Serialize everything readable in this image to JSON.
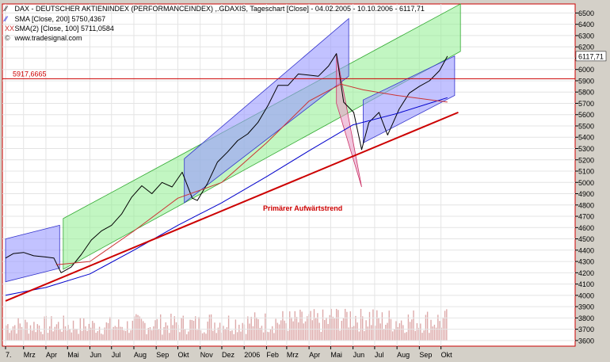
{
  "legend": {
    "dax": "DAX  - DEUTSCHER AKTIENINDEX (PERFORMANCEINDEX) ,.GDAXIS, Tageschart [Close] - 04.02.2005 - 10.10.2006 - 6117,71",
    "sma200": "SMA [Close, 200] 5750,4367",
    "sma100": "SMA(2) [Close, 100] 5711,0584",
    "source": "www.tradesignal.com",
    "dax_mark": "⁄⁄",
    "sma200_mark": "⁄⁄",
    "sma100_mark": "XX"
  },
  "colors": {
    "background": "#ffffff",
    "frame": "#d4d0c8",
    "price": "#000000",
    "sma200": "#0000cc",
    "sma100": "#cc3333",
    "green_channel": "#90ee90",
    "blue_channel": "#9999ff",
    "trendline": "#cc0000",
    "level_line": "#cc0000",
    "volume": "#ddaaaa",
    "last_value_box": "#ffffff"
  },
  "chart_data": {
    "type": "line",
    "title": "DAX  - DEUTSCHER AKTIENINDEX (PERFORMANCEINDEX) ,.GDAXIS, Tageschart [Close] - 04.02.2005 - 10.10.2006 - 6117,71",
    "xlabel": "",
    "ylabel": "",
    "x_range": [
      "2005-02-04",
      "2006-10-10"
    ],
    "ylim": [
      3550,
      6580
    ],
    "y_ticks": [
      3600,
      3700,
      3800,
      3900,
      4000,
      4100,
      4200,
      4300,
      4400,
      4500,
      4600,
      4700,
      4800,
      4900,
      5000,
      5100,
      5200,
      5300,
      5400,
      5500,
      5600,
      5700,
      5800,
      5900,
      6000,
      6100,
      6200,
      6300,
      6400,
      6500
    ],
    "x_ticks": [
      {
        "date": "2005-02-04",
        "label": "7."
      },
      {
        "date": "2005-03-01",
        "label": "Mrz"
      },
      {
        "date": "2005-04-01",
        "label": "Apr"
      },
      {
        "date": "2005-05-01",
        "label": "Mai"
      },
      {
        "date": "2005-06-01",
        "label": "Jun"
      },
      {
        "date": "2005-07-01",
        "label": "Jul"
      },
      {
        "date": "2005-08-01",
        "label": "Aug"
      },
      {
        "date": "2005-09-01",
        "label": "Sep"
      },
      {
        "date": "2005-10-01",
        "label": "Okt"
      },
      {
        "date": "2005-11-01",
        "label": "Nov"
      },
      {
        "date": "2005-12-01",
        "label": "Dez"
      },
      {
        "date": "2006-01-01",
        "label": "2006"
      },
      {
        "date": "2006-02-01",
        "label": "Feb"
      },
      {
        "date": "2006-03-01",
        "label": "Mrz"
      },
      {
        "date": "2006-04-01",
        "label": "Apr"
      },
      {
        "date": "2006-05-01",
        "label": "Mai"
      },
      {
        "date": "2006-06-01",
        "label": "Jun"
      },
      {
        "date": "2006-07-01",
        "label": "Jul"
      },
      {
        "date": "2006-08-01",
        "label": "Aug"
      },
      {
        "date": "2006-09-01",
        "label": "Sep"
      },
      {
        "date": "2006-10-01",
        "label": "Okt"
      }
    ],
    "grid": true,
    "legend_position": "top-left",
    "series": [
      {
        "name": "DAX",
        "points": [
          [
            "2005-02-04",
            4330
          ],
          [
            "2005-02-15",
            4370
          ],
          [
            "2005-03-01",
            4380
          ],
          [
            "2005-03-15",
            4350
          ],
          [
            "2005-03-31",
            4340
          ],
          [
            "2005-04-12",
            4330
          ],
          [
            "2005-04-22",
            4200
          ],
          [
            "2005-05-06",
            4250
          ],
          [
            "2005-05-20",
            4360
          ],
          [
            "2005-06-03",
            4490
          ],
          [
            "2005-06-17",
            4570
          ],
          [
            "2005-07-01",
            4620
          ],
          [
            "2005-07-15",
            4720
          ],
          [
            "2005-07-29",
            4870
          ],
          [
            "2005-08-12",
            4970
          ],
          [
            "2005-08-26",
            4900
          ],
          [
            "2005-09-09",
            5000
          ],
          [
            "2005-09-23",
            4960
          ],
          [
            "2005-10-07",
            5090
          ],
          [
            "2005-10-21",
            4860
          ],
          [
            "2005-10-28",
            4840
          ],
          [
            "2005-11-11",
            4990
          ],
          [
            "2005-11-25",
            5180
          ],
          [
            "2005-12-09",
            5270
          ],
          [
            "2005-12-23",
            5370
          ],
          [
            "2006-01-06",
            5430
          ],
          [
            "2006-01-20",
            5530
          ],
          [
            "2006-02-03",
            5680
          ],
          [
            "2006-02-17",
            5860
          ],
          [
            "2006-03-03",
            5860
          ],
          [
            "2006-03-17",
            5960
          ],
          [
            "2006-03-31",
            5950
          ],
          [
            "2006-04-14",
            5940
          ],
          [
            "2006-04-28",
            6030
          ],
          [
            "2006-05-09",
            6140
          ],
          [
            "2006-05-19",
            5710
          ],
          [
            "2006-06-02",
            5620
          ],
          [
            "2006-06-13",
            5290
          ],
          [
            "2006-06-23",
            5530
          ],
          [
            "2006-07-07",
            5620
          ],
          [
            "2006-07-19",
            5420
          ],
          [
            "2006-08-04",
            5650
          ],
          [
            "2006-08-18",
            5790
          ],
          [
            "2006-09-01",
            5850
          ],
          [
            "2006-09-15",
            5900
          ],
          [
            "2006-09-29",
            5990
          ],
          [
            "2006-10-10",
            6117.71
          ]
        ]
      },
      {
        "name": "SMA [Close, 200]",
        "points": [
          [
            "2005-02-04",
            4000
          ],
          [
            "2005-04-01",
            4070
          ],
          [
            "2005-06-01",
            4190
          ],
          [
            "2005-08-01",
            4400
          ],
          [
            "2005-10-01",
            4620
          ],
          [
            "2005-12-01",
            4820
          ],
          [
            "2006-02-01",
            5050
          ],
          [
            "2006-04-01",
            5280
          ],
          [
            "2006-06-01",
            5510
          ],
          [
            "2006-08-01",
            5610
          ],
          [
            "2006-10-10",
            5750.4367
          ]
        ]
      },
      {
        "name": "SMA(2) [Close, 100]",
        "points": [
          [
            "2005-04-15",
            4270
          ],
          [
            "2005-06-01",
            4300
          ],
          [
            "2005-08-01",
            4570
          ],
          [
            "2005-10-01",
            4860
          ],
          [
            "2005-12-01",
            5000
          ],
          [
            "2006-02-01",
            5350
          ],
          [
            "2006-04-01",
            5720
          ],
          [
            "2006-05-15",
            5870
          ],
          [
            "2006-06-15",
            5820
          ],
          [
            "2006-08-01",
            5770
          ],
          [
            "2006-10-10",
            5711.0584
          ]
        ]
      }
    ],
    "horizontal_line": {
      "value": 5917.6665,
      "label": "5917,6665"
    },
    "last_value": {
      "value": 6117.71,
      "label": "6117,71"
    },
    "trendline": {
      "label": "Primärer Aufwärtstrend",
      "points": [
        [
          "2005-02-04",
          3950
        ],
        [
          "2006-10-25",
          5620
        ]
      ]
    },
    "channels": [
      {
        "name": "green-channel-main",
        "color": "green",
        "polygon": [
          [
            "2005-04-25",
            4680
          ],
          [
            "2006-10-28",
            6580
          ],
          [
            "2006-10-28",
            6160
          ],
          [
            "2005-04-25",
            4230
          ]
        ]
      },
      {
        "name": "blue-channel-2005-start",
        "color": "blue",
        "polygon": [
          [
            "2005-02-04",
            4500
          ],
          [
            "2005-04-20",
            4620
          ],
          [
            "2005-04-20",
            4240
          ],
          [
            "2005-02-04",
            4120
          ]
        ]
      },
      {
        "name": "blue-channel-2005-rally",
        "color": "blue",
        "polygon": [
          [
            "2005-10-10",
            5210
          ],
          [
            "2006-05-26",
            6450
          ],
          [
            "2006-05-26",
            5940
          ],
          [
            "2005-10-10",
            4820
          ]
        ]
      },
      {
        "name": "red-wedge-correction",
        "color": "red",
        "polygon": [
          [
            "2006-05-09",
            6140
          ],
          [
            "2006-06-13",
            4960
          ],
          [
            "2006-05-09",
            5700
          ]
        ]
      },
      {
        "name": "blue-channel-2006",
        "color": "blue",
        "polygon": [
          [
            "2006-06-15",
            5730
          ],
          [
            "2006-10-20",
            6120
          ],
          [
            "2006-10-20",
            5770
          ],
          [
            "2006-06-15",
            5350
          ]
        ]
      }
    ],
    "volume": {
      "ylim": [
        3600,
        3880
      ],
      "baseline": 3600,
      "bars": [
        {
          "start": "2005-02-04",
          "end": "2005-04-30",
          "value": 3735
        },
        {
          "start": "2005-05-01",
          "end": "2005-07-31",
          "value": 3730
        },
        {
          "start": "2005-08-01",
          "end": "2005-10-31",
          "value": 3745
        },
        {
          "start": "2005-11-01",
          "end": "2006-01-31",
          "value": 3760
        },
        {
          "start": "2006-02-01",
          "end": "2006-04-30",
          "value": 3770
        },
        {
          "start": "2006-05-01",
          "end": "2006-06-30",
          "value": 3810
        },
        {
          "start": "2006-07-01",
          "end": "2006-10-10",
          "value": 3775
        }
      ]
    }
  }
}
